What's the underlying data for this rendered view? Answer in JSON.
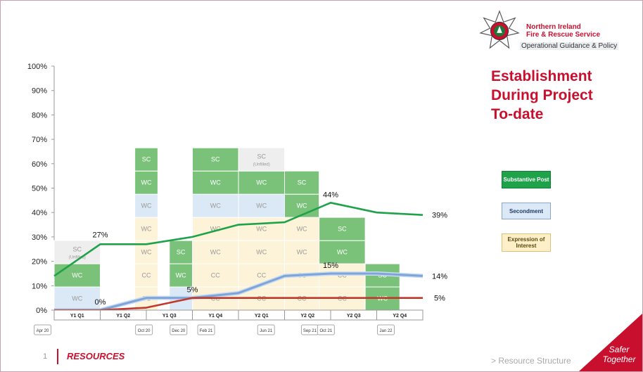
{
  "header": {
    "org_line1": "Northern Ireland",
    "org_line2": "Fire & Rescue Service",
    "subtitle": "Operational Guidance & Policy"
  },
  "title_lines": [
    "Establishment",
    "During Project",
    "To-date"
  ],
  "legend": {
    "substantive": "Substantive Post",
    "secondment": "Secondment",
    "eoi": "Expression of Interest"
  },
  "colors": {
    "substantive_fill": "#7ac27a",
    "substantive_line": "#1fa24a",
    "secondment_fill": "#dbe8f5",
    "secondment_line": "#7fa5d8",
    "eoi_fill": "#fdf3d8",
    "eoi_line": "#c0392b",
    "unfilled_fill": "#eeeeee",
    "brand_red": "#c8102e"
  },
  "footer": {
    "page_number": "1",
    "section": "RESOURCES",
    "link": "> Resource Structure",
    "tagline_1": "Safer",
    "tagline_2": "Together"
  },
  "chart_data": {
    "type": "line",
    "ylim": [
      0,
      100
    ],
    "y_ticks": [
      "0%",
      "10%",
      "20%",
      "30%",
      "40%",
      "50%",
      "60%",
      "70%",
      "80%",
      "90%",
      "100%"
    ],
    "quarter_labels": [
      "Y1 Q1",
      "Y1 Q2",
      "Y1 Q3",
      "Y1 Q4",
      "Y2 Q1",
      "Y2 Q2",
      "Y2 Q3",
      "Y2 Q4"
    ],
    "date_labels": [
      "Apr 20",
      "Oct 20",
      "Dec 20",
      "Feb 21",
      "Jun 21",
      "Sep 21",
      "Oct 21",
      "Jan 22"
    ],
    "series": [
      {
        "key": "substantive",
        "x": [
          0,
          1,
          2,
          3,
          4,
          5,
          5.5,
          6,
          7,
          8
        ],
        "values": [
          14,
          27,
          27,
          30,
          35,
          36,
          40,
          44,
          40,
          39
        ]
      },
      {
        "key": "secondment",
        "x": [
          0,
          1,
          2,
          3,
          4,
          5,
          5.5,
          6,
          7,
          8
        ],
        "values": [
          0,
          0,
          5,
          5,
          7,
          14,
          14.5,
          15,
          15,
          14
        ]
      },
      {
        "key": "eoi",
        "x": [
          0,
          1,
          2,
          3,
          4,
          5,
          5.5,
          6,
          7,
          8
        ],
        "values": [
          0,
          0,
          1,
          5,
          5,
          5,
          5,
          5,
          5,
          5
        ]
      }
    ],
    "point_labels": [
      {
        "text": "27%",
        "x": 1,
        "y": 27
      },
      {
        "text": "0%",
        "x": 1,
        "y": 0
      },
      {
        "text": "5%",
        "x": 3,
        "y": 5
      },
      {
        "text": "44%",
        "x": 6,
        "y": 44
      },
      {
        "text": "15%",
        "x": 6,
        "y": 15
      },
      {
        "text": "39%",
        "x": 8,
        "y": 39
      },
      {
        "text": "14%",
        "x": 8,
        "y": 14
      },
      {
        "text": "5%",
        "x": 8,
        "y": 5
      }
    ],
    "blocks": [
      {
        "x0": 0,
        "x1": 1,
        "y0": 0,
        "y1": 9.5,
        "type": "secondment",
        "label": "WC"
      },
      {
        "x0": 0,
        "x1": 1,
        "y0": 9.5,
        "y1": 19,
        "type": "substantive",
        "label": "WC"
      },
      {
        "x0": 0,
        "x1": 1,
        "y0": 19,
        "y1": 28.5,
        "type": "unfilled",
        "label": "SC",
        "sub": "(Unfilled)"
      },
      {
        "x0": 1.75,
        "x1": 2.25,
        "y0": 0,
        "y1": 9.5,
        "type": "eoi",
        "label": "CC"
      },
      {
        "x0": 1.75,
        "x1": 2.25,
        "y0": 9.5,
        "y1": 19,
        "type": "eoi",
        "label": "CC"
      },
      {
        "x0": 1.75,
        "x1": 2.25,
        "y0": 19,
        "y1": 28.5,
        "type": "eoi",
        "label": "WC"
      },
      {
        "x0": 1.75,
        "x1": 2.25,
        "y0": 28.5,
        "y1": 38,
        "type": "eoi",
        "label": "WC"
      },
      {
        "x0": 1.75,
        "x1": 2.25,
        "y0": 38,
        "y1": 47.5,
        "type": "secondment",
        "label": "WC"
      },
      {
        "x0": 1.75,
        "x1": 2.25,
        "y0": 47.5,
        "y1": 57,
        "type": "substantive",
        "label": "WC"
      },
      {
        "x0": 1.75,
        "x1": 2.25,
        "y0": 57,
        "y1": 66.5,
        "type": "substantive",
        "label": "SC"
      },
      {
        "x0": 2.5,
        "x1": 3,
        "y0": 0,
        "y1": 9.5,
        "type": "secondment",
        "label": "WC"
      },
      {
        "x0": 2.5,
        "x1": 3,
        "y0": 9.5,
        "y1": 19,
        "type": "substantive",
        "label": "WC"
      },
      {
        "x0": 2.5,
        "x1": 3,
        "y0": 19,
        "y1": 28.5,
        "type": "substantive",
        "label": "SC"
      },
      {
        "x0": 3,
        "x1": 4,
        "y0": 0,
        "y1": 9.5,
        "type": "eoi",
        "label": "CC"
      },
      {
        "x0": 3,
        "x1": 4,
        "y0": 9.5,
        "y1": 19,
        "type": "eoi",
        "label": "CC"
      },
      {
        "x0": 3,
        "x1": 4,
        "y0": 19,
        "y1": 28.5,
        "type": "eoi",
        "label": "WC"
      },
      {
        "x0": 3,
        "x1": 4,
        "y0": 28.5,
        "y1": 38,
        "type": "eoi",
        "label": "WC"
      },
      {
        "x0": 3,
        "x1": 4,
        "y0": 38,
        "y1": 47.5,
        "type": "secondment",
        "label": "WC"
      },
      {
        "x0": 3,
        "x1": 4,
        "y0": 47.5,
        "y1": 57,
        "type": "substantive",
        "label": "WC"
      },
      {
        "x0": 3,
        "x1": 4,
        "y0": 57,
        "y1": 66.5,
        "type": "substantive",
        "label": "SC"
      },
      {
        "x0": 4,
        "x1": 5,
        "y0": 0,
        "y1": 9.5,
        "type": "eoi",
        "label": "CC"
      },
      {
        "x0": 4,
        "x1": 5,
        "y0": 9.5,
        "y1": 19,
        "type": "eoi",
        "label": "CC"
      },
      {
        "x0": 4,
        "x1": 5,
        "y0": 19,
        "y1": 28.5,
        "type": "eoi",
        "label": "WC"
      },
      {
        "x0": 4,
        "x1": 5,
        "y0": 28.5,
        "y1": 38,
        "type": "eoi",
        "label": "WC"
      },
      {
        "x0": 4,
        "x1": 5,
        "y0": 38,
        "y1": 47.5,
        "type": "secondment",
        "label": "WC"
      },
      {
        "x0": 4,
        "x1": 5,
        "y0": 47.5,
        "y1": 57,
        "type": "substantive",
        "label": "WC"
      },
      {
        "x0": 4,
        "x1": 5,
        "y0": 57,
        "y1": 66.5,
        "type": "unfilled",
        "label": "SC",
        "sub": "(Unfilled)"
      },
      {
        "x0": 5,
        "x1": 5.75,
        "y0": 0,
        "y1": 9.5,
        "type": "eoi",
        "label": "CC"
      },
      {
        "x0": 5,
        "x1": 5.75,
        "y0": 9.5,
        "y1": 19,
        "type": "eoi",
        "label": "CC"
      },
      {
        "x0": 5,
        "x1": 5.75,
        "y0": 19,
        "y1": 28.5,
        "type": "eoi",
        "label": "WC"
      },
      {
        "x0": 5,
        "x1": 5.75,
        "y0": 28.5,
        "y1": 38,
        "type": "eoi",
        "label": "WC"
      },
      {
        "x0": 5,
        "x1": 5.75,
        "y0": 38,
        "y1": 47.5,
        "type": "substantive",
        "label": "WC"
      },
      {
        "x0": 5,
        "x1": 5.75,
        "y0": 47.5,
        "y1": 57,
        "type": "substantive",
        "label": "SC"
      },
      {
        "x0": 5.75,
        "x1": 6.75,
        "y0": 0,
        "y1": 9.5,
        "type": "eoi",
        "label": "CC"
      },
      {
        "x0": 5.75,
        "x1": 6.75,
        "y0": 9.5,
        "y1": 19,
        "type": "eoi",
        "label": "CC"
      },
      {
        "x0": 5.75,
        "x1": 6.75,
        "y0": 19,
        "y1": 28.5,
        "type": "substantive",
        "label": "WC"
      },
      {
        "x0": 5.75,
        "x1": 6.75,
        "y0": 28.5,
        "y1": 38,
        "type": "substantive",
        "label": "SC"
      },
      {
        "x0": 6.75,
        "x1": 7.5,
        "y0": 0,
        "y1": 9.5,
        "type": "substantive",
        "label": "WC"
      },
      {
        "x0": 6.75,
        "x1": 7.5,
        "y0": 9.5,
        "y1": 19,
        "type": "substantive",
        "label": "SC"
      }
    ]
  }
}
